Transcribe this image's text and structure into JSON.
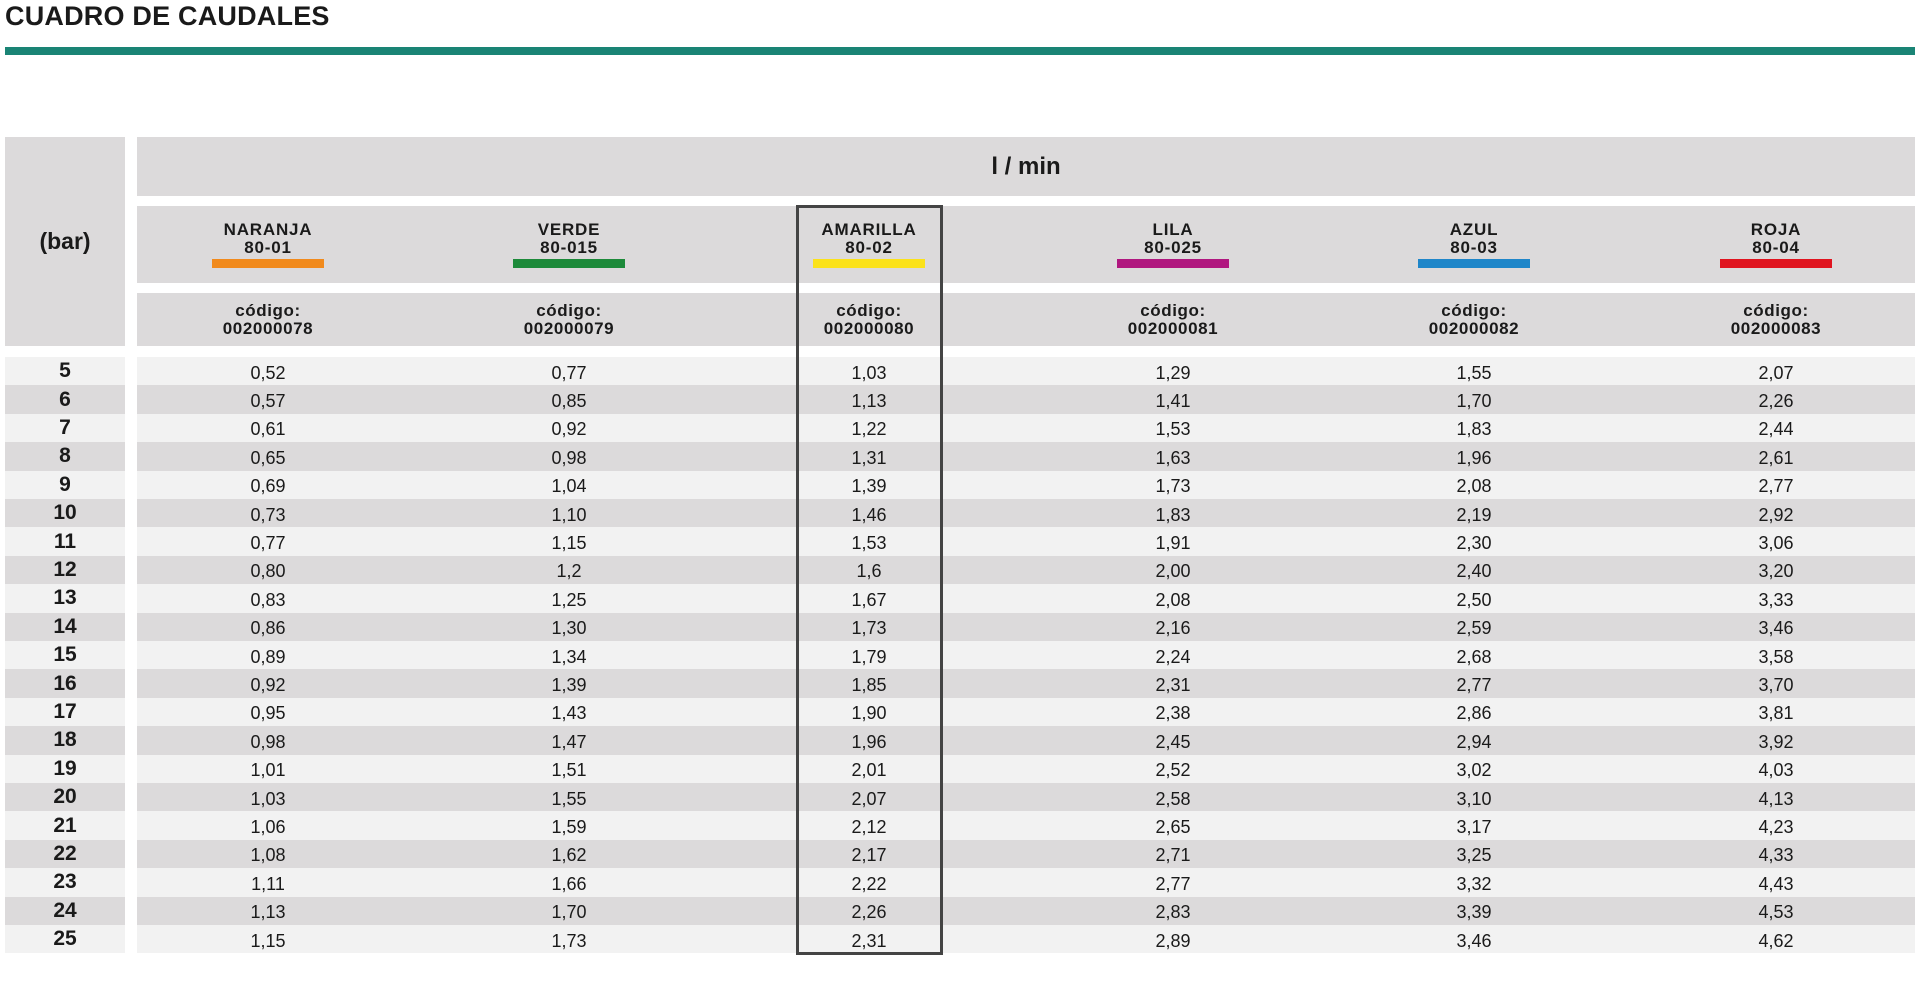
{
  "title": "CUADRO DE CAUDALES",
  "accent_color": "#1a8475",
  "header": {
    "pressure_label": "(bar)",
    "unit_label": "l / min",
    "code_label": "código:"
  },
  "nozzles": [
    {
      "name": "NARANJA",
      "model": "80-01",
      "code": "002000078",
      "color": "#f18a1c"
    },
    {
      "name": "VERDE",
      "model": "80-015",
      "code": "002000079",
      "color": "#1d8a3a"
    },
    {
      "name": "AMARILLA",
      "model": "80-02",
      "code": "002000080",
      "color": "#fbe21a"
    },
    {
      "name": "LILA",
      "model": "80-025",
      "code": "002000081",
      "color": "#b0177f"
    },
    {
      "name": "AZUL",
      "model": "80-03",
      "code": "002000082",
      "color": "#1f86c9"
    },
    {
      "name": "ROJA",
      "model": "80-04",
      "code": "002000083",
      "color": "#e0141f"
    }
  ],
  "highlighted_column": "AMARILLA",
  "rows": [
    {
      "bar": "5",
      "values": [
        "0,52",
        "0,77",
        "1,03",
        "1,29",
        "1,55",
        "2,07"
      ]
    },
    {
      "bar": "6",
      "values": [
        "0,57",
        "0,85",
        "1,13",
        "1,41",
        "1,70",
        "2,26"
      ]
    },
    {
      "bar": "7",
      "values": [
        "0,61",
        "0,92",
        "1,22",
        "1,53",
        "1,83",
        "2,44"
      ]
    },
    {
      "bar": "8",
      "values": [
        "0,65",
        "0,98",
        "1,31",
        "1,63",
        "1,96",
        "2,61"
      ]
    },
    {
      "bar": "9",
      "values": [
        "0,69",
        "1,04",
        "1,39",
        "1,73",
        "2,08",
        "2,77"
      ]
    },
    {
      "bar": "10",
      "values": [
        "0,73",
        "1,10",
        "1,46",
        "1,83",
        "2,19",
        "2,92"
      ]
    },
    {
      "bar": "11",
      "values": [
        "0,77",
        "1,15",
        "1,53",
        "1,91",
        "2,30",
        "3,06"
      ]
    },
    {
      "bar": "12",
      "values": [
        "0,80",
        "1,2",
        "1,6",
        "2,00",
        "2,40",
        "3,20"
      ]
    },
    {
      "bar": "13",
      "values": [
        "0,83",
        "1,25",
        "1,67",
        "2,08",
        "2,50",
        "3,33"
      ]
    },
    {
      "bar": "14",
      "values": [
        "0,86",
        "1,30",
        "1,73",
        "2,16",
        "2,59",
        "3,46"
      ]
    },
    {
      "bar": "15",
      "values": [
        "0,89",
        "1,34",
        "1,79",
        "2,24",
        "2,68",
        "3,58"
      ]
    },
    {
      "bar": "16",
      "values": [
        "0,92",
        "1,39",
        "1,85",
        "2,31",
        "2,77",
        "3,70"
      ]
    },
    {
      "bar": "17",
      "values": [
        "0,95",
        "1,43",
        "1,90",
        "2,38",
        "2,86",
        "3,81"
      ]
    },
    {
      "bar": "18",
      "values": [
        "0,98",
        "1,47",
        "1,96",
        "2,45",
        "2,94",
        "3,92"
      ]
    },
    {
      "bar": "19",
      "values": [
        "1,01",
        "1,51",
        "2,01",
        "2,52",
        "3,02",
        "4,03"
      ]
    },
    {
      "bar": "20",
      "values": [
        "1,03",
        "1,55",
        "2,07",
        "2,58",
        "3,10",
        "4,13"
      ]
    },
    {
      "bar": "21",
      "values": [
        "1,06",
        "1,59",
        "2,12",
        "2,65",
        "3,17",
        "4,23"
      ]
    },
    {
      "bar": "22",
      "values": [
        "1,08",
        "1,62",
        "2,17",
        "2,71",
        "3,25",
        "4,33"
      ]
    },
    {
      "bar": "23",
      "values": [
        "1,11",
        "1,66",
        "2,22",
        "2,77",
        "3,32",
        "4,43"
      ]
    },
    {
      "bar": "24",
      "values": [
        "1,13",
        "1,70",
        "2,26",
        "2,83",
        "3,39",
        "4,53"
      ]
    },
    {
      "bar": "25",
      "values": [
        "1,15",
        "1,73",
        "2,31",
        "2,89",
        "3,46",
        "4,62"
      ]
    }
  ]
}
